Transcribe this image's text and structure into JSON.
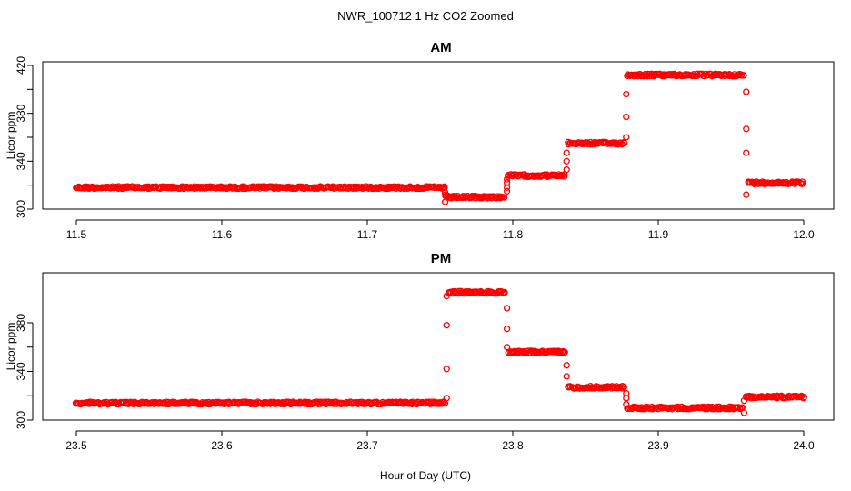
{
  "colors": {
    "points": "#ff0000",
    "axes": "#000000",
    "background": "#ffffff"
  },
  "figure": {
    "title": "NWR_100712  1 Hz CO2 Zoomed",
    "xlabel": "Hour of Day (UTC)"
  },
  "chart_data": [
    {
      "type": "scatter",
      "title": "AM",
      "xlabel": "Hour of Day (UTC)",
      "ylabel": "Licor ppm",
      "xlim": [
        11.5,
        12.0
      ],
      "ylim": [
        300,
        420
      ],
      "x_ticks": [
        "11.5",
        "11.6",
        "11.7",
        "11.8",
        "11.9",
        "12.0"
      ],
      "y_ticks": [
        "300",
        "340",
        "380",
        "420"
      ],
      "y_minor_ticks": [
        320,
        360,
        400
      ],
      "grid": false,
      "marker": "open-circle",
      "segments": [
        {
          "x_start": 11.5,
          "x_end": 11.753,
          "y": 318
        },
        {
          "x_start": 11.754,
          "x_end": 11.795,
          "y": 310
        },
        {
          "x_start": 11.797,
          "x_end": 11.836,
          "y": 328
        },
        {
          "x_start": 11.838,
          "x_end": 11.877,
          "y": 355
        },
        {
          "x_start": 11.879,
          "x_end": 11.96,
          "y": 412
        },
        {
          "x_start": 11.962,
          "x_end": 12.0,
          "y": 322
        }
      ],
      "transitions": [
        {
          "x": 11.7535,
          "y": [
            306,
            312,
            314
          ]
        },
        {
          "x": 11.796,
          "y": [
            315,
            318,
            322,
            325
          ]
        },
        {
          "x": 11.837,
          "y": [
            333,
            340,
            347
          ]
        },
        {
          "x": 11.878,
          "y": [
            360,
            377,
            396
          ]
        },
        {
          "x": 11.9605,
          "y": [
            398,
            367,
            347,
            312
          ]
        }
      ]
    },
    {
      "type": "scatter",
      "title": "PM",
      "xlabel": "Hour of Day (UTC)",
      "ylabel": "Licor ppm",
      "xlim": [
        23.5,
        24.0
      ],
      "ylim": [
        300,
        410
      ],
      "x_ticks": [
        "23.5",
        "23.6",
        "23.7",
        "23.8",
        "23.9",
        "24.0"
      ],
      "y_ticks": [
        "300",
        "340",
        "380"
      ],
      "y_minor_ticks": [
        320,
        360
      ],
      "grid": false,
      "marker": "open-circle",
      "segments": [
        {
          "x_start": 23.5,
          "x_end": 23.753,
          "y": 314
        },
        {
          "x_start": 23.756,
          "x_end": 23.795,
          "y": 405
        },
        {
          "x_start": 23.797,
          "x_end": 23.836,
          "y": 356
        },
        {
          "x_start": 23.838,
          "x_end": 23.877,
          "y": 327
        },
        {
          "x_start": 23.879,
          "x_end": 23.958,
          "y": 310
        },
        {
          "x_start": 23.96,
          "x_end": 24.0,
          "y": 319
        }
      ],
      "transitions": [
        {
          "x": 23.7545,
          "y": [
            318,
            342,
            378,
            402
          ]
        },
        {
          "x": 23.796,
          "y": [
            392,
            375,
            360
          ]
        },
        {
          "x": 23.837,
          "y": [
            345,
            336
          ]
        },
        {
          "x": 23.878,
          "y": [
            322,
            318,
            313
          ]
        },
        {
          "x": 23.959,
          "y": [
            306,
            316
          ]
        }
      ]
    }
  ]
}
